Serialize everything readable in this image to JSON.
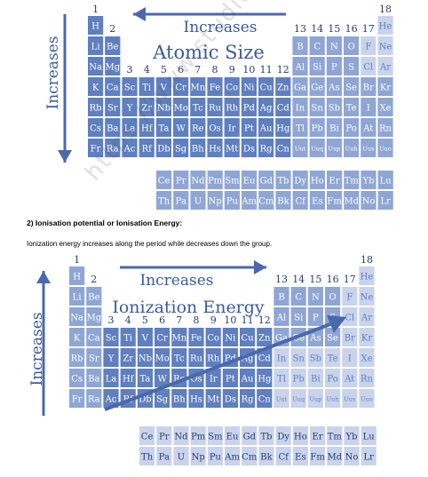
{
  "figure1": {
    "title": "Atomic Size",
    "top_label": "Increases",
    "side_label": "Increases"
  },
  "section": {
    "heading": "2) Ionisation potential or Ionisation Energy:",
    "text": "Ionization energy increases along the period while decreases down the group."
  },
  "figure2": {
    "title": "Ionization Energy",
    "top_label": "Increases",
    "side_label": "Increases"
  },
  "watermark": "https://www.studiestoday.com",
  "group_numbers": [
    "1",
    "2",
    "3",
    "4",
    "5",
    "6",
    "7",
    "8",
    "9",
    "10",
    "11",
    "12",
    "13",
    "14",
    "15",
    "16",
    "17",
    "18"
  ],
  "periodic_rows": [
    [
      [
        "H",
        1
      ],
      [
        "He",
        18
      ]
    ],
    [
      [
        "Li",
        1
      ],
      [
        "Be",
        2
      ],
      [
        "B",
        13
      ],
      [
        "C",
        14
      ],
      [
        "N",
        15
      ],
      [
        "O",
        16
      ],
      [
        "F",
        17
      ],
      [
        "Ne",
        18
      ]
    ],
    [
      [
        "Na",
        1
      ],
      [
        "Mg",
        2
      ],
      [
        "Al",
        13
      ],
      [
        "Si",
        14
      ],
      [
        "P",
        15
      ],
      [
        "S",
        16
      ],
      [
        "Cl",
        17
      ],
      [
        "Ar",
        18
      ]
    ],
    [
      [
        "K",
        1
      ],
      [
        "Ca",
        2
      ],
      [
        "Sc",
        3
      ],
      [
        "Ti",
        4
      ],
      [
        "V",
        5
      ],
      [
        "Cr",
        6
      ],
      [
        "Mn",
        7
      ],
      [
        "Fe",
        8
      ],
      [
        "Co",
        9
      ],
      [
        "Ni",
        10
      ],
      [
        "Cu",
        11
      ],
      [
        "Zn",
        12
      ],
      [
        "Ga",
        13
      ],
      [
        "Ge",
        14
      ],
      [
        "As",
        15
      ],
      [
        "Se",
        16
      ],
      [
        "Br",
        17
      ],
      [
        "Kr",
        18
      ]
    ],
    [
      [
        "Rb",
        1
      ],
      [
        "Sr",
        2
      ],
      [
        "Y",
        3
      ],
      [
        "Zr",
        4
      ],
      [
        "Nb",
        5
      ],
      [
        "Mo",
        6
      ],
      [
        "Tc",
        7
      ],
      [
        "Ru",
        8
      ],
      [
        "Rh",
        9
      ],
      [
        "Pd",
        10
      ],
      [
        "Ag",
        11
      ],
      [
        "Cd",
        12
      ],
      [
        "In",
        13
      ],
      [
        "Sn",
        14
      ],
      [
        "Sb",
        15
      ],
      [
        "Te",
        16
      ],
      [
        "I",
        17
      ],
      [
        "Xe",
        18
      ]
    ],
    [
      [
        "Cs",
        1
      ],
      [
        "Ba",
        2
      ],
      [
        "La",
        3
      ],
      [
        "Hf",
        4
      ],
      [
        "Ta",
        5
      ],
      [
        "W",
        6
      ],
      [
        "Re",
        7
      ],
      [
        "Os",
        8
      ],
      [
        "Ir",
        9
      ],
      [
        "Pt",
        10
      ],
      [
        "Au",
        11
      ],
      [
        "Hg",
        12
      ],
      [
        "Tl",
        13
      ],
      [
        "Pb",
        14
      ],
      [
        "Bi",
        15
      ],
      [
        "Po",
        16
      ],
      [
        "At",
        17
      ],
      [
        "Rn",
        18
      ]
    ],
    [
      [
        "Fr",
        1
      ],
      [
        "Ra",
        2
      ],
      [
        "Ac",
        3
      ],
      [
        "Rf",
        4
      ],
      [
        "Db",
        5
      ],
      [
        "Sg",
        6
      ],
      [
        "Bh",
        7
      ],
      [
        "Hs",
        8
      ],
      [
        "Mt",
        9
      ],
      [
        "Ds",
        10
      ],
      [
        "Rg",
        11
      ],
      [
        "Cn",
        12
      ],
      [
        "Uut",
        13
      ],
      [
        "Uuq",
        14
      ],
      [
        "Uup",
        15
      ],
      [
        "Uuh",
        16
      ],
      [
        "Uus",
        17
      ],
      [
        "Uuo",
        18
      ]
    ]
  ],
  "f_block": [
    [
      "Ce",
      "Pr",
      "Nd",
      "Pm",
      "Sm",
      "Eu",
      "Gd",
      "Tb",
      "Dy",
      "Ho",
      "Er",
      "Tm",
      "Yb",
      "Lu"
    ],
    [
      "Th",
      "Pa",
      "U",
      "Np",
      "Pu",
      "Am",
      "Cm",
      "Bk",
      "Cf",
      "Es",
      "Fm",
      "Md",
      "No",
      "Lr"
    ]
  ],
  "colors": {
    "cell_dark": "#5f7fbf",
    "cell_mid": "#8fa6d5",
    "cell_light": "#c9d3ec",
    "cell_text": "#ffffff",
    "arrow": "#4a68ad",
    "label": "#3b5a9a",
    "group_label": "#2b3b6b"
  }
}
